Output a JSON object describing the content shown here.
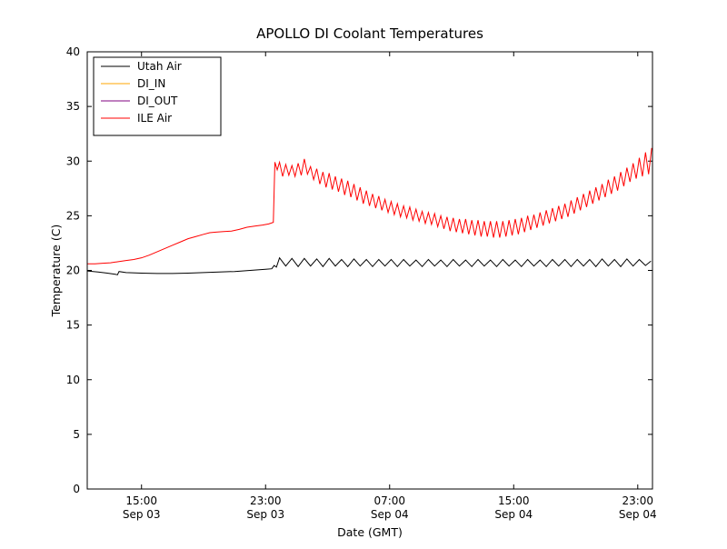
{
  "chart_data": {
    "type": "line",
    "title": "APOLLO DI Coolant Temperatures",
    "xlabel": "Date (GMT)",
    "ylabel": "Temperature (C)",
    "x_unit": "hours since Sep 03 00:00 GMT",
    "xlim": [
      11.5,
      47.95
    ],
    "ylim": [
      0,
      40
    ],
    "yticks": [
      0,
      5,
      10,
      15,
      20,
      25,
      30,
      35,
      40
    ],
    "xticks": [
      {
        "value": 15,
        "time": "15:00",
        "date": "Sep 03"
      },
      {
        "value": 23,
        "time": "23:00",
        "date": "Sep 03"
      },
      {
        "value": 31,
        "time": "07:00",
        "date": "Sep 04"
      },
      {
        "value": 39,
        "time": "15:00",
        "date": "Sep 04"
      },
      {
        "value": 47,
        "time": "23:00",
        "date": "Sep 04"
      }
    ],
    "grid": false,
    "legend_position": "upper-left",
    "series": [
      {
        "name": "Utah Air",
        "color": "#000000",
        "points": [
          [
            11.5,
            19.95
          ],
          [
            12.2,
            19.85
          ],
          [
            12.8,
            19.75
          ],
          [
            13.3,
            19.65
          ],
          [
            13.45,
            19.6
          ],
          [
            13.55,
            19.9
          ],
          [
            14,
            19.8
          ],
          [
            15,
            19.75
          ],
          [
            16,
            19.72
          ],
          [
            17,
            19.72
          ],
          [
            18,
            19.75
          ],
          [
            19,
            19.8
          ],
          [
            20,
            19.85
          ],
          [
            21,
            19.9
          ],
          [
            22,
            20.0
          ],
          [
            23,
            20.1
          ],
          [
            23.4,
            20.15
          ],
          [
            23.55,
            20.45
          ],
          [
            23.7,
            20.3
          ],
          [
            23.9,
            21.15
          ],
          [
            24.3,
            20.4
          ],
          [
            24.7,
            21.1
          ],
          [
            25.1,
            20.35
          ],
          [
            25.5,
            21.1
          ],
          [
            25.9,
            20.4
          ],
          [
            26.3,
            21.05
          ],
          [
            26.7,
            20.35
          ],
          [
            27.1,
            21.1
          ],
          [
            27.5,
            20.4
          ],
          [
            27.9,
            21.0
          ],
          [
            28.3,
            20.35
          ],
          [
            28.7,
            21.05
          ],
          [
            29.1,
            20.4
          ],
          [
            29.5,
            21.0
          ],
          [
            29.9,
            20.35
          ],
          [
            30.3,
            21.0
          ],
          [
            30.7,
            20.4
          ],
          [
            31.1,
            21.0
          ],
          [
            31.5,
            20.35
          ],
          [
            31.9,
            21.0
          ],
          [
            32.3,
            20.4
          ],
          [
            32.7,
            20.95
          ],
          [
            33.1,
            20.35
          ],
          [
            33.5,
            21.0
          ],
          [
            33.9,
            20.4
          ],
          [
            34.3,
            20.95
          ],
          [
            34.7,
            20.35
          ],
          [
            35.1,
            21.0
          ],
          [
            35.5,
            20.4
          ],
          [
            35.9,
            20.95
          ],
          [
            36.3,
            20.35
          ],
          [
            36.7,
            21.0
          ],
          [
            37.1,
            20.4
          ],
          [
            37.5,
            20.95
          ],
          [
            37.9,
            20.35
          ],
          [
            38.3,
            21.0
          ],
          [
            38.7,
            20.4
          ],
          [
            39.1,
            20.95
          ],
          [
            39.5,
            20.35
          ],
          [
            39.9,
            21.0
          ],
          [
            40.3,
            20.4
          ],
          [
            40.7,
            20.95
          ],
          [
            41.1,
            20.35
          ],
          [
            41.5,
            21.0
          ],
          [
            41.9,
            20.4
          ],
          [
            42.3,
            21.0
          ],
          [
            42.7,
            20.35
          ],
          [
            43.1,
            21.0
          ],
          [
            43.5,
            20.4
          ],
          [
            43.9,
            21.0
          ],
          [
            44.3,
            20.35
          ],
          [
            44.7,
            21.05
          ],
          [
            45.1,
            20.4
          ],
          [
            45.5,
            21.0
          ],
          [
            45.9,
            20.35
          ],
          [
            46.3,
            21.05
          ],
          [
            46.7,
            20.4
          ],
          [
            47.1,
            21.0
          ],
          [
            47.5,
            20.45
          ],
          [
            47.85,
            20.85
          ]
        ]
      },
      {
        "name": "DI_IN",
        "color": "#ffa500",
        "points": []
      },
      {
        "name": "DI_OUT",
        "color": "#800080",
        "points": []
      },
      {
        "name": "ILE Air",
        "color": "#ff0000",
        "points": [
          [
            11.5,
            20.6
          ],
          [
            12,
            20.6
          ],
          [
            12.5,
            20.65
          ],
          [
            13,
            20.7
          ],
          [
            13.5,
            20.8
          ],
          [
            14,
            20.9
          ],
          [
            14.5,
            21.0
          ],
          [
            15,
            21.15
          ],
          [
            15.5,
            21.4
          ],
          [
            16,
            21.7
          ],
          [
            16.5,
            22.0
          ],
          [
            17,
            22.3
          ],
          [
            17.5,
            22.6
          ],
          [
            18,
            22.9
          ],
          [
            18.5,
            23.1
          ],
          [
            19,
            23.3
          ],
          [
            19.4,
            23.45
          ],
          [
            19.8,
            23.5
          ],
          [
            20.3,
            23.55
          ],
          [
            20.8,
            23.6
          ],
          [
            21.3,
            23.75
          ],
          [
            21.8,
            23.95
          ],
          [
            22.3,
            24.05
          ],
          [
            22.8,
            24.15
          ],
          [
            23.2,
            24.25
          ],
          [
            23.5,
            24.4
          ],
          [
            23.6,
            29.9
          ],
          [
            23.75,
            29.2
          ],
          [
            23.9,
            29.9
          ],
          [
            24.1,
            28.6
          ],
          [
            24.3,
            29.7
          ],
          [
            24.5,
            28.7
          ],
          [
            24.7,
            29.6
          ],
          [
            24.9,
            28.6
          ],
          [
            25.1,
            29.8
          ],
          [
            25.3,
            28.7
          ],
          [
            25.5,
            30.2
          ],
          [
            25.7,
            28.8
          ],
          [
            25.9,
            29.5
          ],
          [
            26.1,
            28.3
          ],
          [
            26.3,
            29.3
          ],
          [
            26.5,
            27.9
          ],
          [
            26.7,
            29.0
          ],
          [
            26.9,
            27.6
          ],
          [
            27.1,
            28.9
          ],
          [
            27.3,
            27.4
          ],
          [
            27.5,
            28.6
          ],
          [
            27.7,
            27.2
          ],
          [
            27.9,
            28.4
          ],
          [
            28.1,
            26.9
          ],
          [
            28.3,
            28.2
          ],
          [
            28.5,
            26.7
          ],
          [
            28.7,
            27.9
          ],
          [
            28.9,
            26.4
          ],
          [
            29.1,
            27.6
          ],
          [
            29.3,
            26.1
          ],
          [
            29.5,
            27.3
          ],
          [
            29.7,
            25.9
          ],
          [
            29.9,
            27.0
          ],
          [
            30.1,
            25.7
          ],
          [
            30.3,
            26.8
          ],
          [
            30.5,
            25.5
          ],
          [
            30.7,
            26.5
          ],
          [
            30.9,
            25.3
          ],
          [
            31.1,
            26.3
          ],
          [
            31.3,
            25.1
          ],
          [
            31.5,
            26.1
          ],
          [
            31.7,
            24.9
          ],
          [
            31.9,
            25.9
          ],
          [
            32.1,
            24.8
          ],
          [
            32.3,
            25.8
          ],
          [
            32.5,
            24.6
          ],
          [
            32.7,
            25.6
          ],
          [
            32.9,
            24.5
          ],
          [
            33.1,
            25.4
          ],
          [
            33.3,
            24.3
          ],
          [
            33.5,
            25.3
          ],
          [
            33.7,
            24.2
          ],
          [
            33.9,
            25.2
          ],
          [
            34.1,
            24.0
          ],
          [
            34.3,
            25.0
          ],
          [
            34.5,
            23.8
          ],
          [
            34.7,
            24.9
          ],
          [
            34.9,
            23.6
          ],
          [
            35.1,
            24.8
          ],
          [
            35.3,
            23.5
          ],
          [
            35.5,
            24.7
          ],
          [
            35.7,
            23.4
          ],
          [
            35.9,
            24.7
          ],
          [
            36.1,
            23.3
          ],
          [
            36.3,
            24.6
          ],
          [
            36.5,
            23.2
          ],
          [
            36.7,
            24.6
          ],
          [
            36.9,
            23.1
          ],
          [
            37.1,
            24.5
          ],
          [
            37.3,
            23.1
          ],
          [
            37.5,
            24.5
          ],
          [
            37.7,
            23.0
          ],
          [
            37.9,
            24.5
          ],
          [
            38.1,
            23.0
          ],
          [
            38.3,
            24.5
          ],
          [
            38.5,
            23.1
          ],
          [
            38.7,
            24.6
          ],
          [
            38.9,
            23.2
          ],
          [
            39.1,
            24.7
          ],
          [
            39.3,
            23.3
          ],
          [
            39.5,
            24.8
          ],
          [
            39.7,
            23.5
          ],
          [
            39.9,
            25.0
          ],
          [
            40.1,
            23.7
          ],
          [
            40.3,
            25.1
          ],
          [
            40.5,
            23.9
          ],
          [
            40.7,
            25.3
          ],
          [
            40.9,
            24.1
          ],
          [
            41.1,
            25.5
          ],
          [
            41.3,
            24.3
          ],
          [
            41.5,
            25.7
          ],
          [
            41.7,
            24.5
          ],
          [
            41.9,
            25.9
          ],
          [
            42.1,
            24.7
          ],
          [
            42.3,
            26.1
          ],
          [
            42.5,
            24.9
          ],
          [
            42.7,
            26.4
          ],
          [
            42.9,
            25.2
          ],
          [
            43.1,
            26.7
          ],
          [
            43.3,
            25.5
          ],
          [
            43.5,
            27.0
          ],
          [
            43.7,
            25.8
          ],
          [
            43.9,
            27.3
          ],
          [
            44.1,
            26.1
          ],
          [
            44.3,
            27.6
          ],
          [
            44.5,
            26.4
          ],
          [
            44.7,
            27.9
          ],
          [
            44.9,
            26.7
          ],
          [
            45.1,
            28.3
          ],
          [
            45.3,
            27.0
          ],
          [
            45.5,
            28.6
          ],
          [
            45.7,
            27.3
          ],
          [
            45.9,
            29.0
          ],
          [
            46.1,
            27.7
          ],
          [
            46.3,
            29.4
          ],
          [
            46.5,
            28.1
          ],
          [
            46.7,
            29.8
          ],
          [
            46.9,
            28.4
          ],
          [
            47.1,
            30.3
          ],
          [
            47.3,
            28.6
          ],
          [
            47.5,
            30.8
          ],
          [
            47.7,
            28.8
          ],
          [
            47.9,
            31.2
          ]
        ]
      }
    ]
  }
}
